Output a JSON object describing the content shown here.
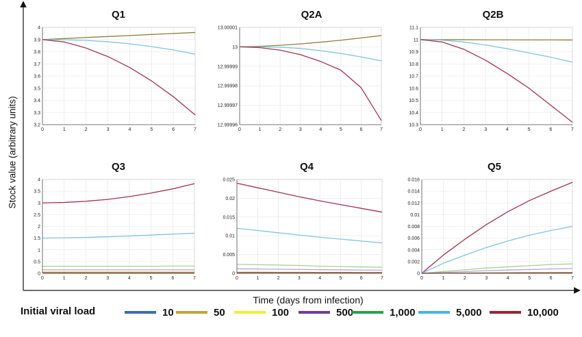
{
  "figure": {
    "ylabel": "Stock value (arbitrary units)",
    "xlabel": "Time (days from infection)",
    "legend_title": "Initial viral load",
    "legend": [
      {
        "label": "10",
        "color": "#3b6db3"
      },
      {
        "label": "50",
        "color": "#c9a23a"
      },
      {
        "label": "100",
        "color": "#f2ee3a"
      },
      {
        "label": "500",
        "color": "#6e3b9e"
      },
      {
        "label": "1,000",
        "color": "#28a148"
      },
      {
        "label": "5,000",
        "color": "#45b6e6"
      },
      {
        "label": "10,000",
        "color": "#a3212b"
      }
    ]
  },
  "chart_data": [
    {
      "type": "line",
      "title": "Q1",
      "xlim": [
        0,
        7
      ],
      "ylim": [
        3.2,
        4
      ],
      "x_ticks": [
        "0",
        "1",
        "2",
        "3",
        "4",
        "5",
        "6",
        "7"
      ],
      "y_ticks": [
        "4",
        "3.9",
        "3.8",
        "3.7",
        "3.6",
        "3.5",
        "3.4",
        "3.3",
        "3.2"
      ],
      "grid": true,
      "series": [
        {
          "color": "#8d7f3b",
          "x": [
            0,
            1,
            2,
            3,
            4,
            5,
            6,
            7
          ],
          "y": [
            3.9,
            3.908,
            3.917,
            3.925,
            3.933,
            3.942,
            3.95,
            3.958
          ]
        },
        {
          "color": "#7dc4df",
          "x": [
            0,
            1,
            2,
            3,
            4,
            5,
            6,
            7
          ],
          "y": [
            3.9,
            3.898,
            3.893,
            3.882,
            3.865,
            3.842,
            3.815,
            3.78
          ]
        },
        {
          "color": "#a0334b",
          "x": [
            0,
            1,
            2,
            3,
            4,
            5,
            6,
            7
          ],
          "y": [
            3.9,
            3.88,
            3.83,
            3.76,
            3.67,
            3.56,
            3.43,
            3.28
          ]
        }
      ]
    },
    {
      "type": "line",
      "title": "Q2A",
      "xlim": [
        0,
        7
      ],
      "ylim": [
        12.99996,
        13.00001
      ],
      "x_ticks": [
        "0",
        "1",
        "2",
        "3",
        "4",
        "5",
        "6",
        "7"
      ],
      "y_ticks": [
        "13.00001",
        "13",
        "12.99999",
        "12.99998",
        "12.99997",
        "12.99996"
      ],
      "grid": true,
      "series": [
        {
          "color": "#8d7f3b",
          "x": [
            0,
            1,
            2,
            3,
            4,
            5,
            6,
            7
          ],
          "y": [
            13.0,
            13.0000003,
            13.0000008,
            13.0000015,
            13.0000024,
            13.0000034,
            13.0000046,
            13.0000058
          ]
        },
        {
          "color": "#7dc4df",
          "x": [
            0,
            1,
            2,
            3,
            4,
            5,
            6,
            7
          ],
          "y": [
            13.0,
            13.0,
            12.9999998,
            12.9999992,
            12.999998,
            12.9999966,
            12.9999948,
            12.9999928
          ]
        },
        {
          "color": "#a0334b",
          "x": [
            0,
            1,
            2,
            3,
            4,
            5,
            6,
            7
          ],
          "y": [
            13.0,
            12.9999996,
            12.9999983,
            12.999996,
            12.9999925,
            12.999988,
            12.999979,
            12.9999621
          ]
        }
      ]
    },
    {
      "type": "line",
      "title": "Q2B",
      "xlim": [
        0,
        7
      ],
      "ylim": [
        10.3,
        11.1
      ],
      "x_ticks": [
        "0",
        "1",
        "2",
        "3",
        "4",
        "5",
        "6",
        "7"
      ],
      "y_ticks": [
        "11.1",
        "11",
        "10.9",
        "10.8",
        "10.7",
        "10.6",
        "10.5",
        "10.4",
        "10.3"
      ],
      "grid": true,
      "series": [
        {
          "color": "#8d7f3b",
          "x": [
            0,
            1,
            2,
            3,
            4,
            5,
            6,
            7
          ],
          "y": [
            11.0,
            10.999,
            10.999,
            10.998,
            10.998,
            10.997,
            10.997,
            10.996
          ]
        },
        {
          "color": "#7dc4df",
          "x": [
            0,
            1,
            2,
            3,
            4,
            5,
            6,
            7
          ],
          "y": [
            11.0,
            10.995,
            10.98,
            10.955,
            10.925,
            10.89,
            10.855,
            10.815
          ]
        },
        {
          "color": "#a0334b",
          "x": [
            0,
            1,
            2,
            3,
            4,
            5,
            6,
            7
          ],
          "y": [
            11.0,
            10.98,
            10.92,
            10.83,
            10.72,
            10.6,
            10.46,
            10.32
          ]
        }
      ]
    },
    {
      "type": "line",
      "title": "Q3",
      "xlim": [
        0,
        7
      ],
      "ylim": [
        0,
        4
      ],
      "x_ticks": [
        "0",
        "1",
        "2",
        "3",
        "4",
        "5",
        "6",
        "7"
      ],
      "y_ticks": [
        "4",
        "3.5",
        "3",
        "2.5",
        "2",
        "1.5",
        "1",
        "0.5",
        "0"
      ],
      "grid": true,
      "series": [
        {
          "color": "#a0334b",
          "x": [
            0,
            1,
            2,
            3,
            4,
            5,
            6,
            7
          ],
          "y": [
            3.0,
            3.02,
            3.07,
            3.15,
            3.27,
            3.42,
            3.6,
            3.82
          ]
        },
        {
          "color": "#7dc4df",
          "x": [
            0,
            1,
            2,
            3,
            4,
            5,
            6,
            7
          ],
          "y": [
            1.5,
            1.51,
            1.53,
            1.56,
            1.59,
            1.63,
            1.67,
            1.71
          ]
        },
        {
          "color": "#a8d18c",
          "x": [
            0,
            1,
            2,
            3,
            4,
            5,
            6,
            7
          ],
          "y": [
            0.3,
            0.3,
            0.3,
            0.3,
            0.3,
            0.3,
            0.31,
            0.31
          ]
        },
        {
          "color": "#b7a6d6",
          "x": [
            0,
            1,
            2,
            3,
            4,
            5,
            6,
            7
          ],
          "y": [
            0.15,
            0.15,
            0.15,
            0.15,
            0.15,
            0.15,
            0.15,
            0.15
          ]
        },
        {
          "color": "#c9a23a",
          "x": [
            0,
            1,
            2,
            3,
            4,
            5,
            6,
            7
          ],
          "y": [
            0.05,
            0.05,
            0.05,
            0.05,
            0.05,
            0.05,
            0.05,
            0.05
          ]
        },
        {
          "color": "#8b3b3b",
          "x": [
            0,
            1,
            2,
            3,
            4,
            5,
            6,
            7
          ],
          "y": [
            0.01,
            0.01,
            0.01,
            0.01,
            0.01,
            0.01,
            0.01,
            0.01
          ]
        }
      ]
    },
    {
      "type": "line",
      "title": "Q4",
      "xlim": [
        0,
        7
      ],
      "ylim": [
        0,
        0.025
      ],
      "x_ticks": [
        "0",
        "1",
        "2",
        "3",
        "4",
        "5",
        "6",
        "7"
      ],
      "y_ticks": [
        "0.025",
        "0.02",
        "0.015",
        "0.01",
        "0.005",
        "0"
      ],
      "grid": true,
      "series": [
        {
          "color": "#a0334b",
          "x": [
            0,
            1,
            2,
            3,
            4,
            5,
            6,
            7
          ],
          "y": [
            0.024,
            0.0228,
            0.0216,
            0.0204,
            0.0193,
            0.0183,
            0.0173,
            0.0163
          ]
        },
        {
          "color": "#7dc4df",
          "x": [
            0,
            1,
            2,
            3,
            4,
            5,
            6,
            7
          ],
          "y": [
            0.012,
            0.0114,
            0.0108,
            0.0102,
            0.0096,
            0.0091,
            0.0086,
            0.0081
          ]
        },
        {
          "color": "#a8d18c",
          "x": [
            0,
            1,
            2,
            3,
            4,
            5,
            6,
            7
          ],
          "y": [
            0.0024,
            0.0023,
            0.0022,
            0.0021,
            0.0019,
            0.0018,
            0.0017,
            0.0016
          ]
        },
        {
          "color": "#b7a6d6",
          "x": [
            0,
            1,
            2,
            3,
            4,
            5,
            6,
            7
          ],
          "y": [
            0.0012,
            0.00115,
            0.0011,
            0.00103,
            0.00097,
            0.00092,
            0.00087,
            0.00082
          ]
        },
        {
          "color": "#c9a23a",
          "x": [
            0,
            1,
            2,
            3,
            4,
            5,
            6,
            7
          ],
          "y": [
            0.0003,
            0.0003,
            0.00028,
            0.00027,
            0.00025,
            0.00024,
            0.00023,
            0.00022
          ]
        },
        {
          "color": "#8b3b3b",
          "x": [
            0,
            1,
            2,
            3,
            4,
            5,
            6,
            7
          ],
          "y": [
            0.0001,
            0.0001,
            0.0001,
            0.0001,
            0.0001,
            0.0001,
            0.0001,
            0.0001
          ]
        }
      ]
    },
    {
      "type": "line",
      "title": "Q5",
      "xlim": [
        0,
        7
      ],
      "ylim": [
        0,
        0.016
      ],
      "x_ticks": [
        "0",
        "1",
        "2",
        "3",
        "4",
        "5",
        "6",
        "7"
      ],
      "y_ticks": [
        "0.016",
        "0.014",
        "0.012",
        "0.01",
        "0.008",
        "0.006",
        "0.004",
        "0.002",
        "0"
      ],
      "grid": true,
      "series": [
        {
          "color": "#a0334b",
          "x": [
            0,
            1,
            2,
            3,
            4,
            5,
            6,
            7
          ],
          "y": [
            0,
            0.0031,
            0.0058,
            0.0083,
            0.0105,
            0.0124,
            0.014,
            0.0155
          ]
        },
        {
          "color": "#7dc4df",
          "x": [
            0,
            1,
            2,
            3,
            4,
            5,
            6,
            7
          ],
          "y": [
            0,
            0.0017,
            0.0031,
            0.0044,
            0.0055,
            0.0065,
            0.0073,
            0.008
          ]
        },
        {
          "color": "#a8d18c",
          "x": [
            0,
            1,
            2,
            3,
            4,
            5,
            6,
            7
          ],
          "y": [
            0,
            0.0003,
            0.0006,
            0.0009,
            0.0011,
            0.0013,
            0.0015,
            0.0016
          ]
        },
        {
          "color": "#b7a6d6",
          "x": [
            0,
            1,
            2,
            3,
            4,
            5,
            6,
            7
          ],
          "y": [
            0,
            0.00015,
            0.0003,
            0.00045,
            0.00055,
            0.00065,
            0.00074,
            0.0008
          ]
        },
        {
          "color": "#c9a23a",
          "x": [
            0,
            1,
            2,
            3,
            4,
            5,
            6,
            7
          ],
          "y": [
            0,
            3e-05,
            6e-05,
            9e-05,
            0.00011,
            0.00013,
            0.00015,
            0.00016
          ]
        },
        {
          "color": "#8b3b3b",
          "x": [
            0,
            1,
            2,
            3,
            4,
            5,
            6,
            7
          ],
          "y": [
            0,
            1e-05,
            2e-05,
            3e-05,
            3e-05,
            4e-05,
            4e-05,
            5e-05
          ]
        }
      ]
    }
  ]
}
